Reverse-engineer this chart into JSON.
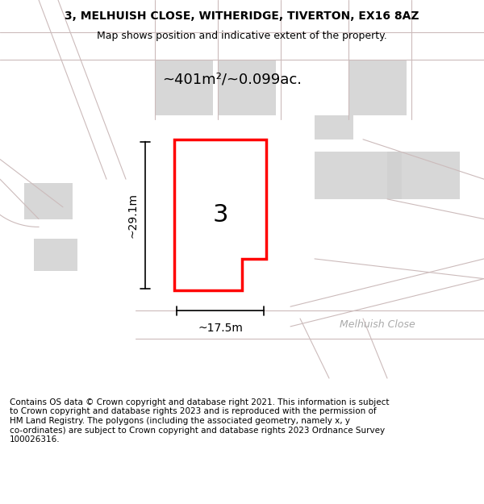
{
  "title_line1": "3, MELHUISH CLOSE, WITHERIDGE, TIVERTON, EX16 8AZ",
  "title_line2": "Map shows position and indicative extent of the property.",
  "area_label": "~401m²/~0.099ac.",
  "width_label": "~17.5m",
  "height_label": "~29.1m",
  "number_label": "3",
  "road_label": "Melhuish Close",
  "footer_text": "Contains OS data © Crown copyright and database right 2021. This information is subject\nto Crown copyright and database rights 2023 and is reproduced with the permission of\nHM Land Registry. The polygons (including the associated geometry, namely x, y\nco-ordinates) are subject to Crown copyright and database rights 2023 Ordnance Survey\n100026316.",
  "bg_color": "#ffffff",
  "map_bg": "#f8f0f0",
  "plot_color": "#ff0000",
  "plot_fill": "#ffffff",
  "building_color": "#d0d0d0",
  "road_color": "#e8d8d8",
  "line_color": "#ccbbbb"
}
